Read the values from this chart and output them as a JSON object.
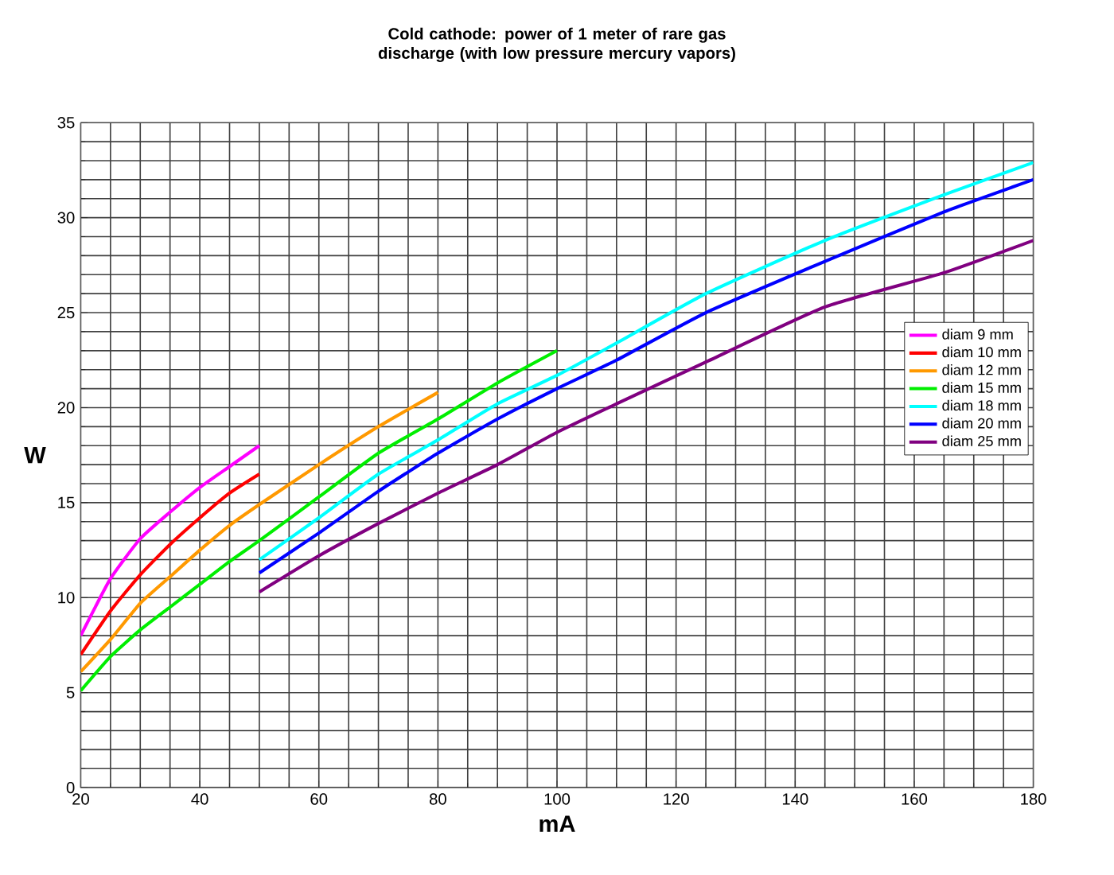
{
  "chart_data": {
    "type": "line",
    "title": "Cold cathode: power of 1 meter of rare gas discharge (with low pressure mercury vapors)",
    "xlabel": "mA",
    "ylabel": "W",
    "xlim": [
      20,
      180
    ],
    "ylim": [
      0,
      35
    ],
    "xticks": [
      20,
      40,
      60,
      80,
      100,
      120,
      140,
      160,
      180
    ],
    "yticks": [
      0,
      5,
      10,
      15,
      20,
      25,
      30,
      35
    ],
    "grid": true,
    "legend": "right",
    "marker": "none",
    "line_style": "solid",
    "series": [
      {
        "name": "diam 9 mm",
        "color": "#ff00ff",
        "x": [
          20,
          25,
          30,
          35,
          40,
          45,
          50
        ],
        "values": [
          8.0,
          11.0,
          13.1,
          14.5,
          15.8,
          16.9,
          18.0
        ]
      },
      {
        "name": "diam 10 mm",
        "color": "#ff0000",
        "x": [
          20,
          25,
          30,
          35,
          40,
          45,
          50
        ],
        "values": [
          7.0,
          9.3,
          11.2,
          12.8,
          14.2,
          15.5,
          16.5
        ]
      },
      {
        "name": "diam 12 mm",
        "color": "#ff9900",
        "x": [
          20,
          25,
          30,
          35,
          40,
          45,
          50,
          60,
          70,
          80
        ],
        "values": [
          6.1,
          7.8,
          9.7,
          11.1,
          12.5,
          13.8,
          14.9,
          17.0,
          19.0,
          20.8
        ]
      },
      {
        "name": "diam 15 mm",
        "color": "#00ee00",
        "x": [
          20,
          25,
          30,
          35,
          40,
          45,
          50,
          60,
          70,
          80,
          90,
          100
        ],
        "values": [
          5.1,
          6.9,
          8.3,
          9.5,
          10.7,
          11.9,
          13.0,
          15.3,
          17.6,
          19.4,
          21.3,
          23.0
        ]
      },
      {
        "name": "diam 18 mm",
        "color": "#00ffff",
        "x": [
          50,
          60,
          70,
          80,
          90,
          100,
          110,
          125,
          145,
          165,
          180
        ],
        "values": [
          12.0,
          14.2,
          16.5,
          18.3,
          20.2,
          21.7,
          23.4,
          26.0,
          28.8,
          31.2,
          32.9
        ]
      },
      {
        "name": "diam 20 mm",
        "color": "#0000ff",
        "x": [
          50,
          60,
          70,
          80,
          90,
          100,
          110,
          125,
          145,
          165,
          180
        ],
        "values": [
          11.3,
          13.4,
          15.6,
          17.6,
          19.4,
          21.0,
          22.5,
          25.0,
          27.7,
          30.3,
          32.0
        ]
      },
      {
        "name": "diam 25 mm",
        "color": "#800080",
        "x": [
          50,
          60,
          70,
          80,
          90,
          100,
          110,
          125,
          145,
          165,
          180
        ],
        "values": [
          10.3,
          12.2,
          13.9,
          15.5,
          17.0,
          18.7,
          20.2,
          22.4,
          25.3,
          27.1,
          28.8
        ]
      }
    ]
  }
}
